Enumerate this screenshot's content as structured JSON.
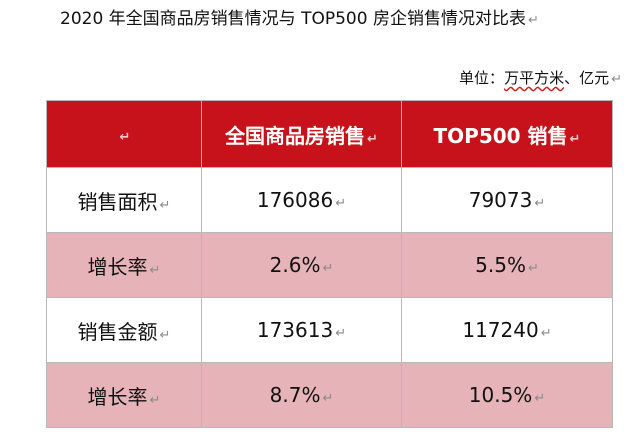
{
  "title": "2020 年全国商品房销售情况与 TOP500 房企销售情况对比表",
  "unit": {
    "prefix": "单位：",
    "underlined": "万平方米",
    "suffix": "、亿元"
  },
  "marker": "↵",
  "table": {
    "headers": [
      "",
      "全国商品房销售",
      "TOP500 销售"
    ],
    "rows": [
      {
        "label": "销售面积",
        "national": "176086",
        "top500": "79073"
      },
      {
        "label": "增长率",
        "national": "2.6%",
        "top500": "5.5%"
      },
      {
        "label": "销售金额",
        "national": "173613",
        "top500": "117240"
      },
      {
        "label": "增长率",
        "national": "8.7%",
        "top500": "10.5%"
      }
    ]
  },
  "colors": {
    "header_bg": "#c8121b",
    "alt_row_bg": "#e6b4b8"
  }
}
